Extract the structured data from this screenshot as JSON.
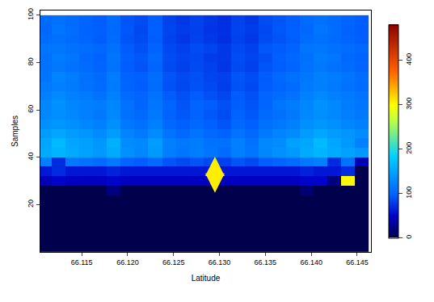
{
  "chart_data": {
    "type": "heatmap",
    "x_label": "Latitude",
    "y_label": "Samples",
    "x": [
      66.111,
      66.1125,
      66.114,
      66.1155,
      66.117,
      66.1185,
      66.12,
      66.1215,
      66.123,
      66.1245,
      66.126,
      66.1275,
      66.129,
      66.1305,
      66.132,
      66.1335,
      66.135,
      66.1365,
      66.138,
      66.1395,
      66.141,
      66.1425,
      66.144,
      66.1455
    ],
    "y": [
      2,
      6,
      10,
      14,
      18,
      22,
      26,
      30,
      34,
      38,
      42,
      46,
      50,
      54,
      58,
      62,
      66,
      70,
      74,
      78,
      82,
      86,
      90,
      94,
      98
    ],
    "cells": [
      [
        0,
        0,
        0,
        0,
        0,
        0,
        0,
        0,
        0,
        0,
        0,
        0,
        0,
        0,
        0,
        0,
        0,
        0,
        0,
        0,
        0,
        0,
        0,
        0
      ],
      [
        0,
        0,
        0,
        0,
        0,
        0,
        0,
        0,
        0,
        0,
        0,
        0,
        0,
        0,
        0,
        0,
        0,
        0,
        0,
        0,
        0,
        0,
        0,
        0
      ],
      [
        0,
        0,
        0,
        0,
        0,
        0,
        0,
        0,
        0,
        0,
        0,
        0,
        0,
        0,
        0,
        0,
        0,
        0,
        0,
        0,
        0,
        0,
        0,
        0
      ],
      [
        0,
        0,
        0,
        0,
        0,
        0,
        0,
        0,
        0,
        0,
        0,
        0,
        0,
        0,
        0,
        0,
        0,
        0,
        0,
        0,
        0,
        0,
        0,
        0
      ],
      [
        0,
        0,
        0,
        0,
        0,
        0,
        0,
        0,
        0,
        0,
        0,
        0,
        0,
        0,
        0,
        0,
        0,
        0,
        0,
        0,
        0,
        0,
        0,
        0
      ],
      [
        0,
        0,
        0,
        0,
        0,
        0,
        0,
        0,
        0,
        0,
        0,
        0,
        0,
        0,
        0,
        0,
        0,
        0,
        0,
        0,
        0,
        0,
        0,
        0
      ],
      [
        0,
        0,
        0,
        0,
        0,
        20,
        0,
        0,
        0,
        0,
        0,
        0,
        0,
        0,
        0,
        0,
        0,
        0,
        0,
        15,
        0,
        0,
        0,
        0
      ],
      [
        40,
        50,
        45,
        45,
        45,
        50,
        45,
        45,
        45,
        45,
        45,
        45,
        45,
        45,
        45,
        45,
        45,
        45,
        45,
        50,
        50,
        20,
        300,
        0
      ],
      [
        60,
        70,
        60,
        60,
        60,
        65,
        60,
        60,
        60,
        60,
        60,
        60,
        60,
        60,
        60,
        60,
        60,
        60,
        60,
        65,
        60,
        60,
        70,
        0
      ],
      [
        120,
        70,
        115,
        110,
        105,
        115,
        100,
        95,
        105,
        90,
        85,
        90,
        85,
        80,
        90,
        85,
        95,
        100,
        105,
        115,
        120,
        70,
        110,
        40
      ],
      [
        154,
        161,
        154,
        147,
        140,
        154,
        133,
        126,
        140,
        119,
        112,
        119,
        112,
        105,
        119,
        112,
        126,
        133,
        140,
        154,
        161,
        154,
        147,
        140
      ],
      [
        150,
        165,
        150,
        145,
        138,
        158,
        130,
        128,
        142,
        120,
        115,
        118,
        110,
        108,
        120,
        110,
        128,
        130,
        145,
        150,
        165,
        150,
        140,
        120
      ],
      [
        143,
        150,
        143,
        137,
        130,
        143,
        124,
        117,
        130,
        111,
        104,
        111,
        104,
        98,
        111,
        104,
        117,
        124,
        130,
        143,
        150,
        143,
        137,
        130
      ],
      [
        132,
        138,
        132,
        126,
        120,
        132,
        114,
        108,
        120,
        102,
        96,
        102,
        96,
        90,
        102,
        96,
        108,
        114,
        120,
        132,
        138,
        132,
        126,
        120
      ],
      [
        127,
        132,
        127,
        121,
        115,
        127,
        109,
        104,
        115,
        98,
        92,
        98,
        92,
        86,
        98,
        92,
        104,
        109,
        115,
        127,
        132,
        127,
        121,
        115
      ],
      [
        125,
        135,
        125,
        120,
        118,
        125,
        110,
        100,
        112,
        100,
        90,
        100,
        95,
        88,
        95,
        90,
        100,
        112,
        118,
        125,
        135,
        128,
        118,
        112
      ],
      [
        121,
        127,
        121,
        116,
        110,
        121,
        105,
        99,
        110,
        94,
        88,
        94,
        88,
        83,
        94,
        88,
        99,
        105,
        110,
        121,
        127,
        121,
        116,
        110
      ],
      [
        116,
        121,
        116,
        110,
        105,
        116,
        100,
        95,
        105,
        89,
        84,
        89,
        84,
        79,
        89,
        84,
        95,
        100,
        105,
        116,
        121,
        116,
        110,
        105
      ],
      [
        112,
        124,
        118,
        108,
        104,
        118,
        98,
        96,
        106,
        90,
        85,
        88,
        82,
        80,
        90,
        86,
        94,
        102,
        108,
        114,
        120,
        118,
        112,
        106
      ],
      [
        110,
        115,
        110,
        105,
        100,
        110,
        95,
        90,
        100,
        85,
        80,
        85,
        80,
        75,
        85,
        80,
        90,
        95,
        100,
        110,
        115,
        110,
        105,
        100
      ],
      [
        108,
        118,
        112,
        104,
        98,
        112,
        96,
        92,
        102,
        86,
        82,
        84,
        78,
        76,
        86,
        82,
        88,
        96,
        102,
        108,
        118,
        112,
        104,
        98
      ],
      [
        112,
        114,
        108,
        106,
        102,
        108,
        94,
        88,
        98,
        84,
        80,
        86,
        82,
        76,
        84,
        80,
        92,
        94,
        98,
        112,
        114,
        108,
        106,
        102
      ],
      [
        105,
        109,
        105,
        100,
        95,
        105,
        90,
        86,
        95,
        81,
        76,
        81,
        76,
        71,
        81,
        76,
        86,
        90,
        95,
        105,
        109,
        105,
        100,
        95
      ],
      [
        102,
        112,
        106,
        98,
        96,
        104,
        92,
        84,
        96,
        82,
        78,
        80,
        74,
        72,
        82,
        78,
        84,
        92,
        96,
        102,
        112,
        106,
        98,
        94
      ],
      [
        105,
        109,
        105,
        100,
        95,
        105,
        90,
        86,
        95,
        81,
        76,
        81,
        76,
        71,
        81,
        76,
        86,
        90,
        95,
        105,
        109,
        105,
        100,
        95
      ]
    ],
    "xlim": [
      66.1105,
      66.1465
    ],
    "xticks": [
      66.115,
      {
        "value": 66.12,
        "label": "66.120"
      },
      66.125,
      {
        "value": 66.13,
        "label": "66.130"
      },
      66.135,
      {
        "value": 66.14,
        "label": "66.140"
      },
      66.145
    ],
    "ylim": [
      0,
      102
    ],
    "yticks": [
      20,
      40,
      60,
      80,
      100
    ],
    "colorbar": {
      "range": [
        0,
        480
      ],
      "ticks": [
        0,
        100,
        200,
        300,
        400
      ]
    }
  }
}
